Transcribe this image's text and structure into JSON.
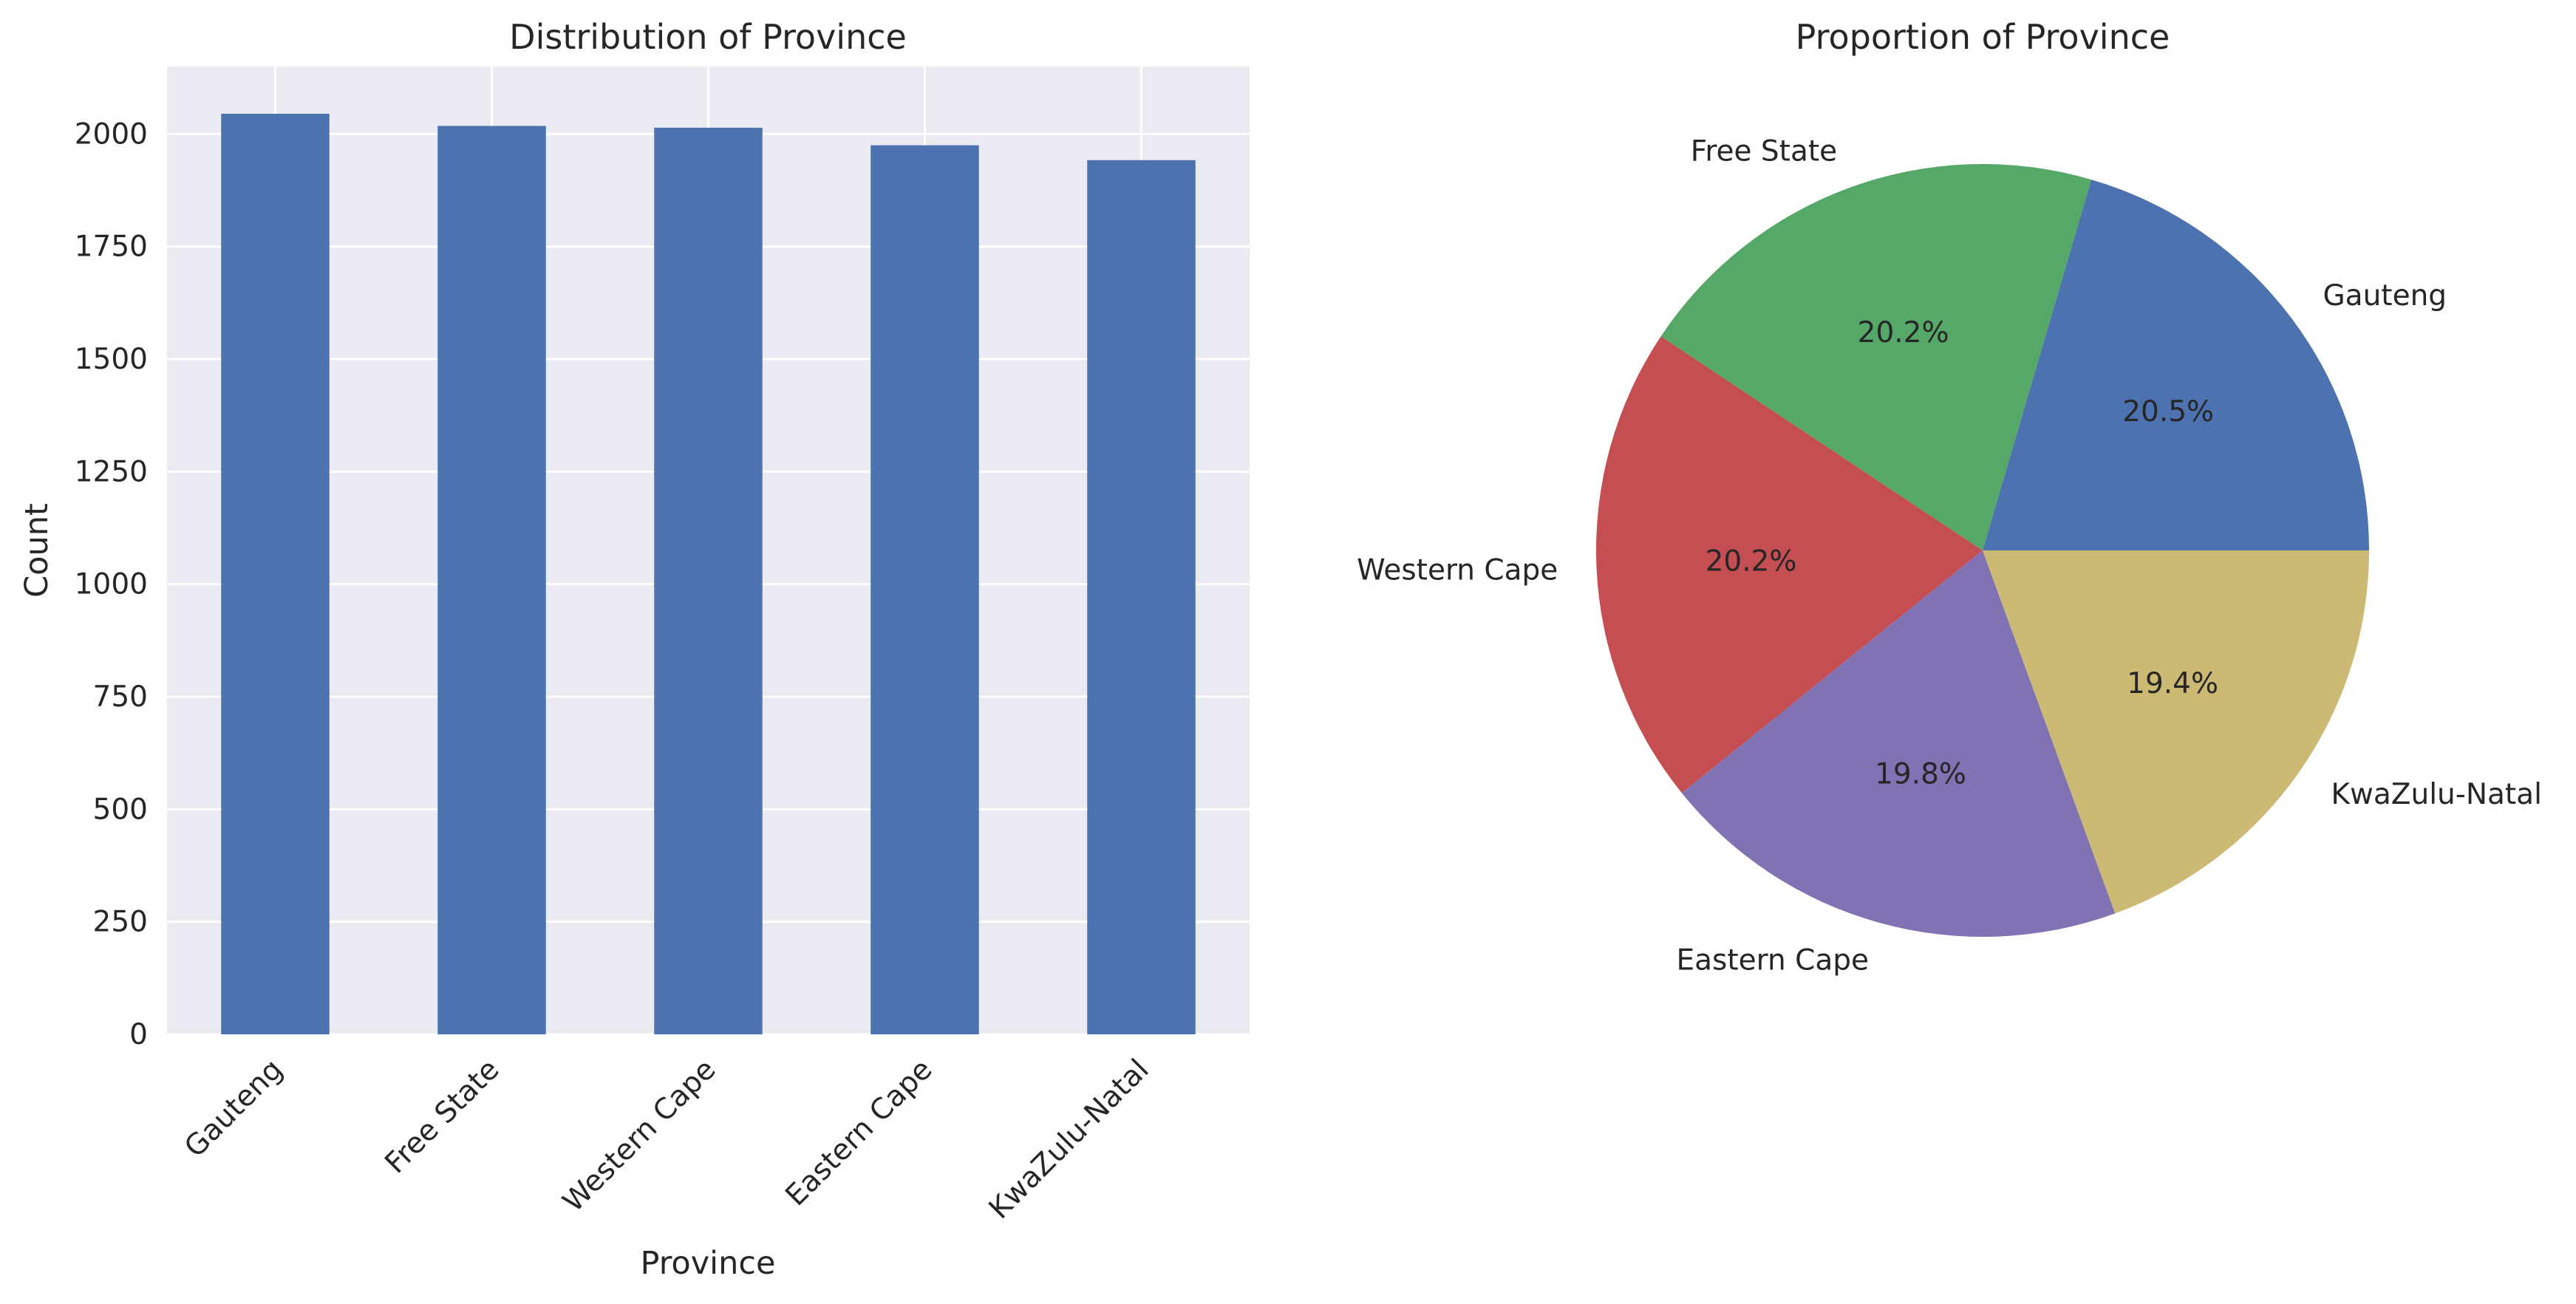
{
  "chart_data": [
    {
      "type": "bar",
      "title": "Distribution of Province",
      "xlabel": "Province",
      "ylabel": "Count",
      "categories": [
        "Gauteng",
        "Free State",
        "Western Cape",
        "Eastern Cape",
        "KwaZulu-Natal"
      ],
      "values": [
        2045,
        2018,
        2014,
        1975,
        1942
      ],
      "ylim": [
        0,
        2150
      ],
      "yticks": [
        0,
        250,
        500,
        750,
        1000,
        1250,
        1500,
        1750,
        2000
      ],
      "bar_color": "#4c72b0",
      "background": "#eaeaf2",
      "grid": true,
      "xtick_rotation_deg": 45
    },
    {
      "type": "pie",
      "title": "Proportion of Province",
      "labels": [
        "Gauteng",
        "Free State",
        "Western Cape",
        "Eastern Cape",
        "KwaZulu-Natal"
      ],
      "values": [
        2045,
        2018,
        2014,
        1975,
        1942
      ],
      "percent_labels": [
        "20.5%",
        "20.2%",
        "20.2%",
        "19.8%",
        "19.4%"
      ],
      "colors": [
        "#4c72b0",
        "#55a868",
        "#c44e52",
        "#8172b3",
        "#ccb974"
      ],
      "start_angle_deg": 0,
      "direction": "counterclockwise"
    }
  ]
}
